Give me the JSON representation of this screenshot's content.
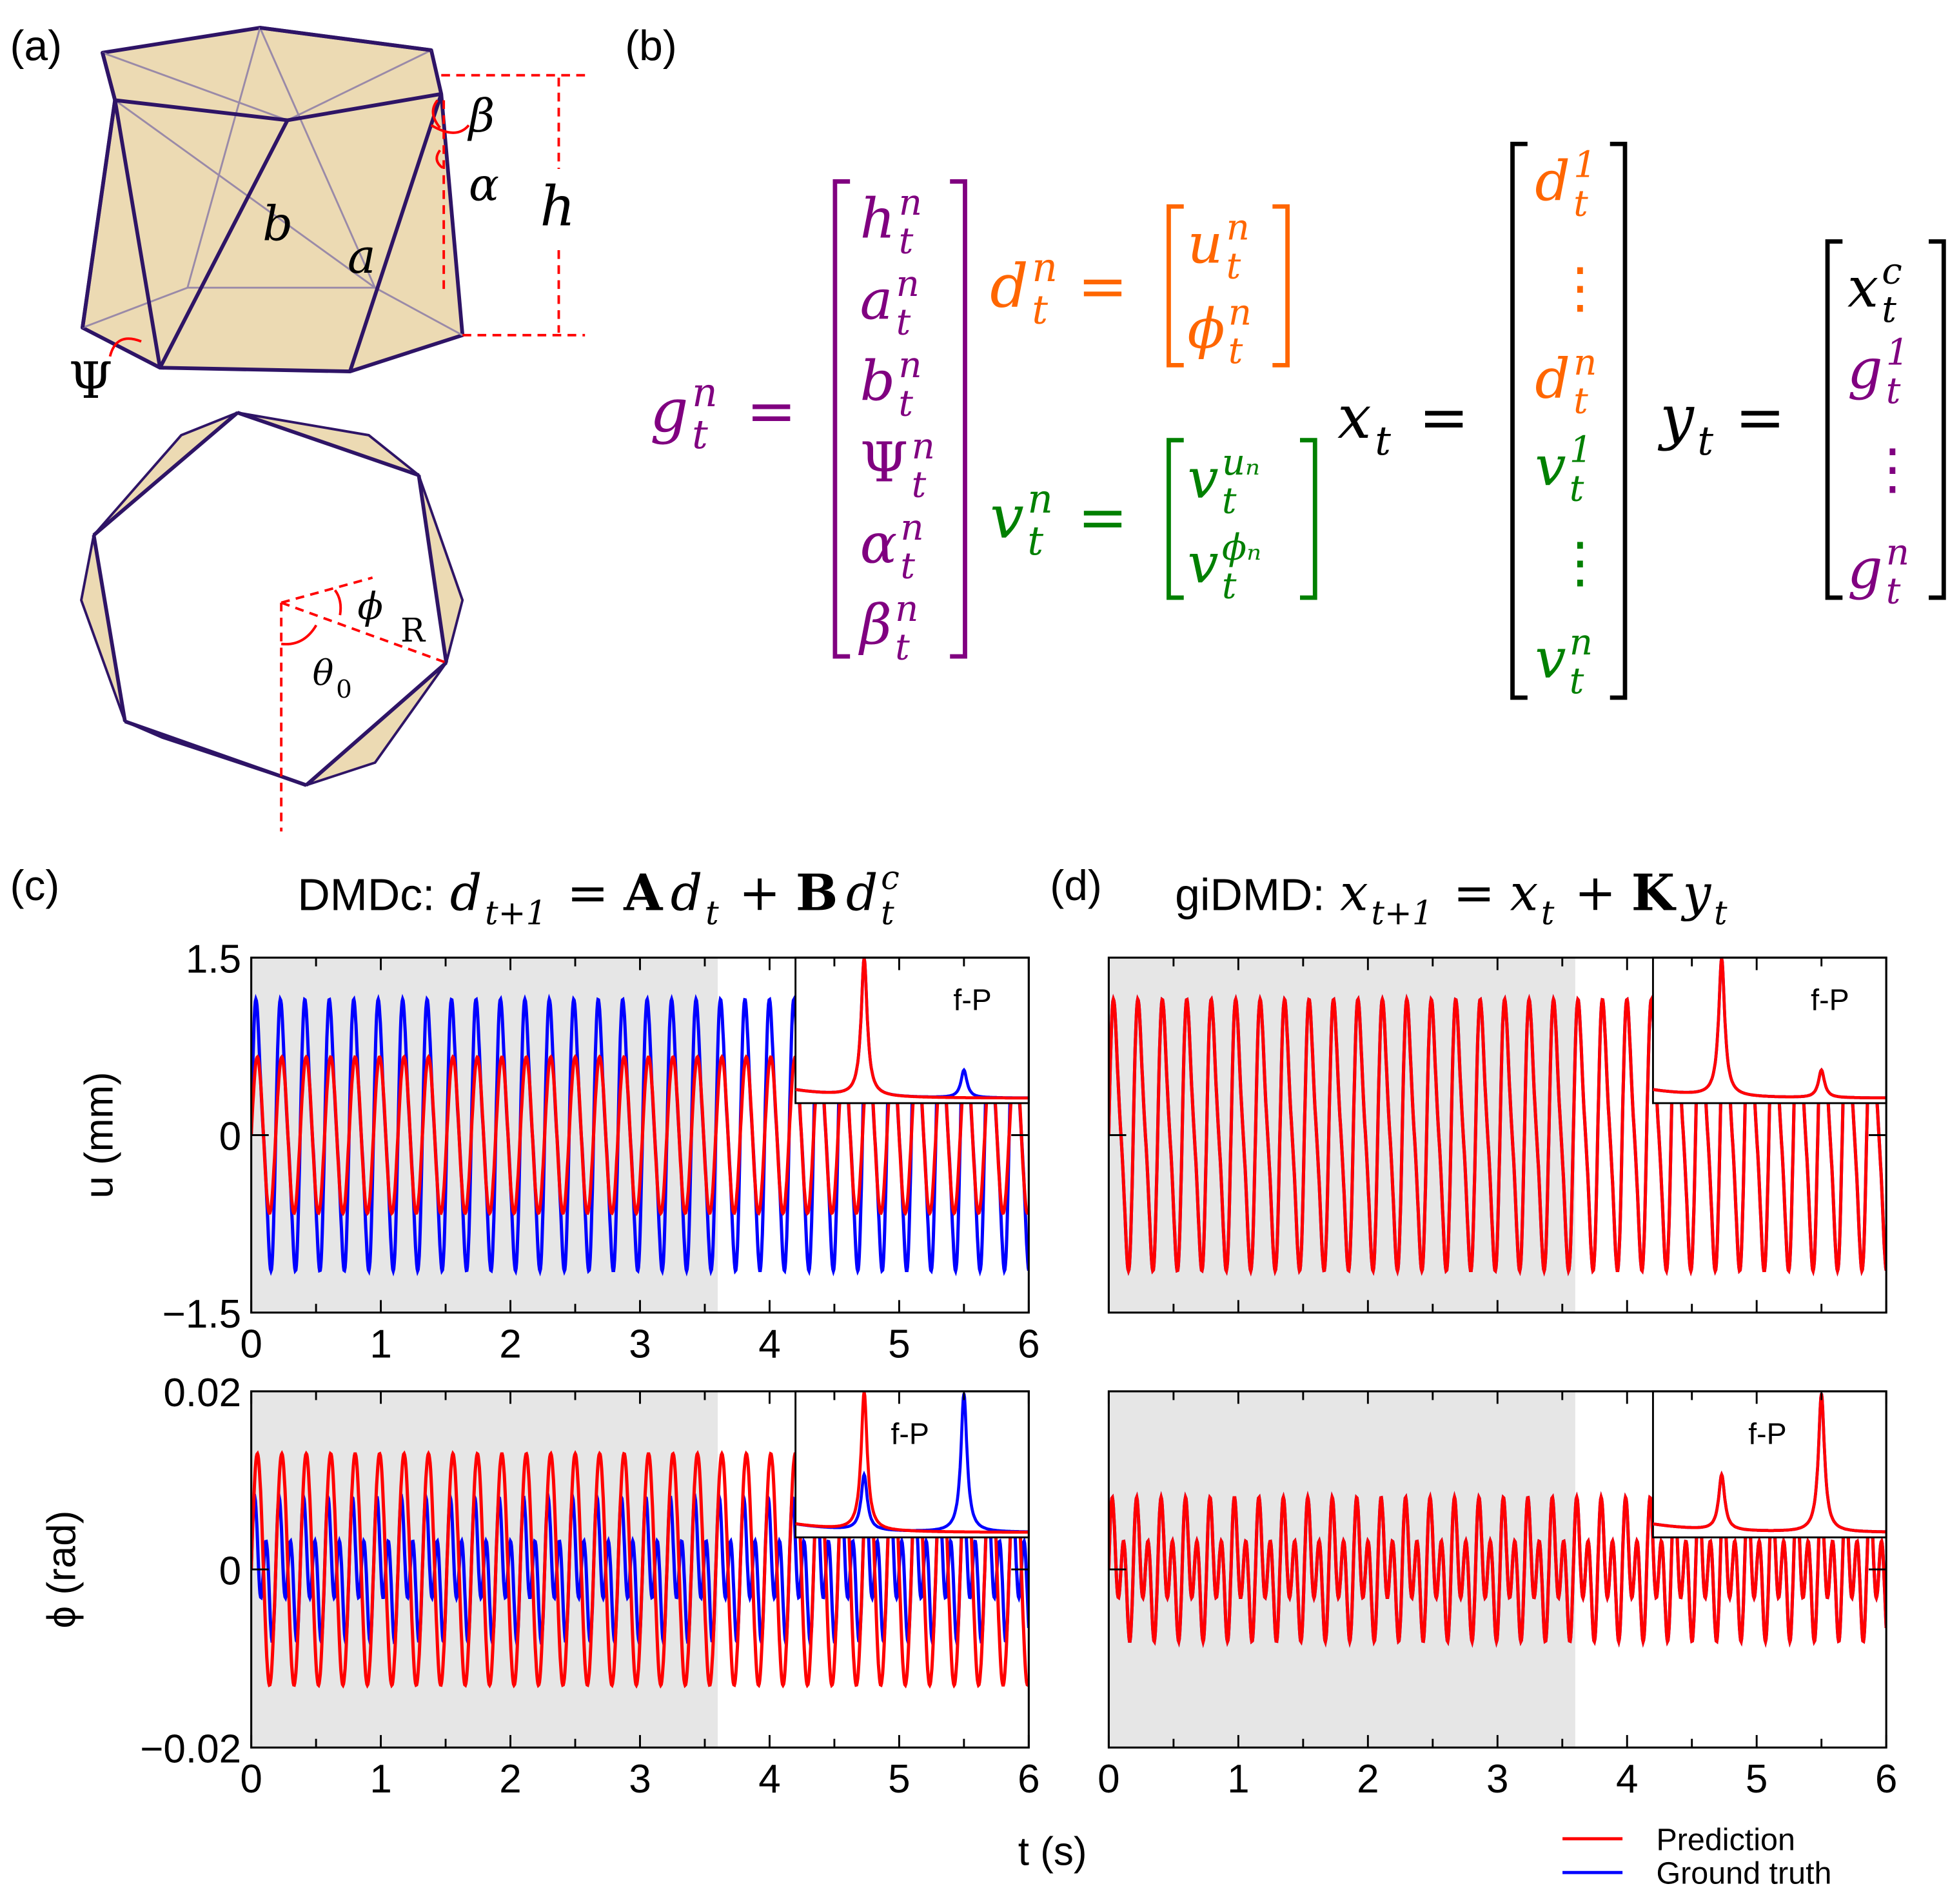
{
  "panel_labels": {
    "a": "(a)",
    "b": "(b)",
    "c": "(c)",
    "d": "(d)"
  },
  "colors": {
    "purple": "#800080",
    "orange": "#ff6600",
    "green": "#008000",
    "black": "#000000",
    "prediction": "#ff0000",
    "ground_truth": "#0000ff",
    "training_shade": "#e6e6e6",
    "origami_fill": "#e9d3a6",
    "origami_edge": "#2e1466",
    "annotation": "#ff0000"
  },
  "diagram_a": {
    "labels": {
      "beta": "β",
      "alpha": "α",
      "h": "h",
      "b": "b",
      "a": "a",
      "psi": "Ψ",
      "phi": "ϕ",
      "R": "R",
      "theta": "θ",
      "theta_sub": "0"
    }
  },
  "equations_b": {
    "eq": "=",
    "g": {
      "lhs": {
        "b": "g",
        "sup": "n",
        "sub": "t"
      },
      "color": "purple",
      "vector": [
        {
          "b": "h",
          "sup": "n",
          "sub": "t"
        },
        {
          "b": "a",
          "sup": "n",
          "sub": "t"
        },
        {
          "b": "b",
          "sup": "n",
          "sub": "t"
        },
        {
          "b": "Ψ",
          "sup": "n",
          "sub": "t"
        },
        {
          "b": "α",
          "sup": "n",
          "sub": "t"
        },
        {
          "b": "β",
          "sup": "n",
          "sub": "t"
        }
      ]
    },
    "d": {
      "lhs": {
        "b": "d",
        "sup": "n",
        "sub": "t"
      },
      "color": "orange",
      "vector": [
        {
          "b": "u",
          "sup": "n",
          "sub": "t"
        },
        {
          "b": "ϕ",
          "sup": "n",
          "sub": "t"
        }
      ]
    },
    "v": {
      "lhs": {
        "b": "v",
        "sup": "n",
        "sub": "t"
      },
      "color": "green",
      "vector": [
        {
          "b": "v",
          "sup": "uₙ",
          "sub": "t"
        },
        {
          "b": "v",
          "sup": "ϕₙ",
          "sub": "t"
        }
      ]
    },
    "x": {
      "lhs": {
        "b": "x",
        "sub": "t"
      },
      "color": "black",
      "vector": [
        {
          "b": "d",
          "sup": "1",
          "sub": "t",
          "color": "orange"
        },
        {
          "b": "⋮",
          "color": "orange"
        },
        {
          "b": "d",
          "sup": "n",
          "sub": "t",
          "color": "orange"
        },
        {
          "b": "v",
          "sup": "1",
          "sub": "t",
          "color": "green"
        },
        {
          "b": "⋮",
          "color": "green"
        },
        {
          "b": "v",
          "sup": "n",
          "sub": "t",
          "color": "green"
        }
      ]
    },
    "y": {
      "lhs": {
        "b": "y",
        "sub": "t"
      },
      "color": "black",
      "vector": [
        {
          "b": "x",
          "sup": "c",
          "sub": "t",
          "color": "black"
        },
        {
          "b": "g",
          "sup": "1",
          "sub": "t",
          "color": "purple"
        },
        {
          "b": "⋮",
          "color": "purple"
        },
        {
          "b": "g",
          "sup": "n",
          "sub": "t",
          "color": "purple"
        }
      ]
    }
  },
  "titles": {
    "c": {
      "prefix": "DMDc:",
      "terms": [
        {
          "b": "d",
          "sub": "t+1"
        },
        {
          "op": "="
        },
        {
          "b": "A",
          "bold": true
        },
        {
          "b": "d",
          "sub": "t"
        },
        {
          "op": "+"
        },
        {
          "b": "B",
          "bold": true
        },
        {
          "b": "d",
          "sup": "c",
          "sub": "t"
        }
      ]
    },
    "d": {
      "prefix": "giDMD:",
      "terms": [
        {
          "b": "x",
          "sub": "t+1"
        },
        {
          "op": "="
        },
        {
          "b": "x",
          "sub": "t"
        },
        {
          "op": "+"
        },
        {
          "b": "K",
          "bold": true
        },
        {
          "b": "y",
          "sub": "t"
        }
      ]
    }
  },
  "legend": {
    "placement": "bottom-right",
    "prediction": "Prediction",
    "ground_truth": "Ground truth"
  },
  "chart_data": [
    {
      "id": "c-u",
      "type": "line",
      "title": "",
      "xlabel": "",
      "ylabel": "u (mm)",
      "xlim": [
        0,
        6
      ],
      "ylim": [
        -1.5,
        1.5
      ],
      "xticks": [
        0,
        1,
        2,
        3,
        4,
        5,
        6
      ],
      "yticks": [
        "1.5",
        "0",
        "−1.5"
      ],
      "training_region": [
        0,
        3.6
      ],
      "grid": false,
      "series": [
        {
          "name": "Ground truth",
          "color": "ground_truth",
          "components": [
            {
              "freq_hz": 5.3,
              "amp": 1.05
            },
            {
              "freq_hz": 10.6,
              "amp": 0.25
            }
          ]
        },
        {
          "name": "Prediction",
          "color": "prediction",
          "components": [
            {
              "freq_hz": 5.3,
              "amp": 0.66
            }
          ]
        }
      ],
      "inset": {
        "label": "f-P",
        "xlim": [
          0,
          18
        ],
        "series": [
          {
            "name": "Ground truth",
            "peaks": [
              {
                "f": 5.3,
                "p": 1.0
              },
              {
                "f": 13.0,
                "p": 0.2
              }
            ]
          },
          {
            "name": "Prediction",
            "peaks": [
              {
                "f": 5.3,
                "p": 1.0
              }
            ]
          }
        ]
      }
    },
    {
      "id": "c-phi",
      "type": "line",
      "title": "",
      "xlabel": "t (s)",
      "ylabel": "ϕ (rad)",
      "xlim": [
        0,
        6
      ],
      "ylim": [
        -0.02,
        0.02
      ],
      "xticks": [
        0,
        1,
        2,
        3,
        4,
        5,
        6
      ],
      "yticks": [
        "0.02",
        "0",
        "−0.02"
      ],
      "training_region": [
        0,
        3.6
      ],
      "grid": false,
      "series": [
        {
          "name": "Ground truth",
          "color": "ground_truth",
          "components": [
            {
              "freq_hz": 5.3,
              "amp": 0.0035
            },
            {
              "freq_hz": 10.6,
              "amp": 0.0055
            }
          ]
        },
        {
          "name": "Prediction",
          "color": "prediction",
          "components": [
            {
              "freq_hz": 5.3,
              "amp": 0.013
            }
          ]
        }
      ],
      "inset": {
        "label": "f-P",
        "xlim": [
          0,
          18
        ],
        "series": [
          {
            "name": "Ground truth",
            "peaks": [
              {
                "f": 5.3,
                "p": 0.4
              },
              {
                "f": 13.0,
                "p": 1.0
              }
            ]
          },
          {
            "name": "Prediction",
            "peaks": [
              {
                "f": 5.3,
                "p": 1.0
              }
            ]
          }
        ]
      }
    },
    {
      "id": "d-u",
      "type": "line",
      "title": "",
      "xlabel": "",
      "ylabel": "",
      "xlim": [
        0,
        6
      ],
      "ylim": [
        -1.5,
        1.5
      ],
      "xticks": [],
      "yticks": [],
      "training_region": [
        0,
        3.6
      ],
      "grid": false,
      "series": [
        {
          "name": "Ground truth",
          "color": "ground_truth",
          "components": [
            {
              "freq_hz": 5.3,
              "amp": 1.05
            },
            {
              "freq_hz": 10.6,
              "amp": 0.25
            }
          ]
        },
        {
          "name": "Prediction",
          "color": "prediction",
          "components": [
            {
              "freq_hz": 5.3,
              "amp": 1.05
            },
            {
              "freq_hz": 10.6,
              "amp": 0.25
            }
          ]
        }
      ],
      "inset": {
        "label": "f-P",
        "xlim": [
          0,
          18
        ],
        "series": [
          {
            "name": "Ground truth",
            "peaks": [
              {
                "f": 5.3,
                "p": 1.0
              },
              {
                "f": 13.0,
                "p": 0.2
              }
            ]
          },
          {
            "name": "Prediction",
            "peaks": [
              {
                "f": 5.3,
                "p": 1.0
              },
              {
                "f": 13.0,
                "p": 0.2
              }
            ]
          }
        ]
      }
    },
    {
      "id": "d-phi",
      "type": "line",
      "title": "",
      "xlabel": "t (s)",
      "ylabel": "",
      "xlim": [
        0,
        6
      ],
      "ylim": [
        -0.02,
        0.02
      ],
      "xticks": [
        0,
        1,
        2,
        3,
        4,
        5,
        6
      ],
      "yticks": [],
      "training_region": [
        0,
        3.6
      ],
      "grid": false,
      "series": [
        {
          "name": "Ground truth",
          "color": "ground_truth",
          "components": [
            {
              "freq_hz": 5.3,
              "amp": 0.0035
            },
            {
              "freq_hz": 10.6,
              "amp": 0.0055
            }
          ]
        },
        {
          "name": "Prediction",
          "color": "prediction",
          "components": [
            {
              "freq_hz": 5.3,
              "amp": 0.0035
            },
            {
              "freq_hz": 10.6,
              "amp": 0.0055
            }
          ]
        }
      ],
      "inset": {
        "label": "f-P",
        "xlim": [
          0,
          18
        ],
        "series": [
          {
            "name": "Ground truth",
            "peaks": [
              {
                "f": 5.3,
                "p": 0.4
              },
              {
                "f": 13.0,
                "p": 1.0
              }
            ]
          },
          {
            "name": "Prediction",
            "peaks": [
              {
                "f": 5.3,
                "p": 0.4
              },
              {
                "f": 13.0,
                "p": 1.0
              }
            ]
          }
        ]
      }
    }
  ],
  "shared_xlabel": "t (s)"
}
